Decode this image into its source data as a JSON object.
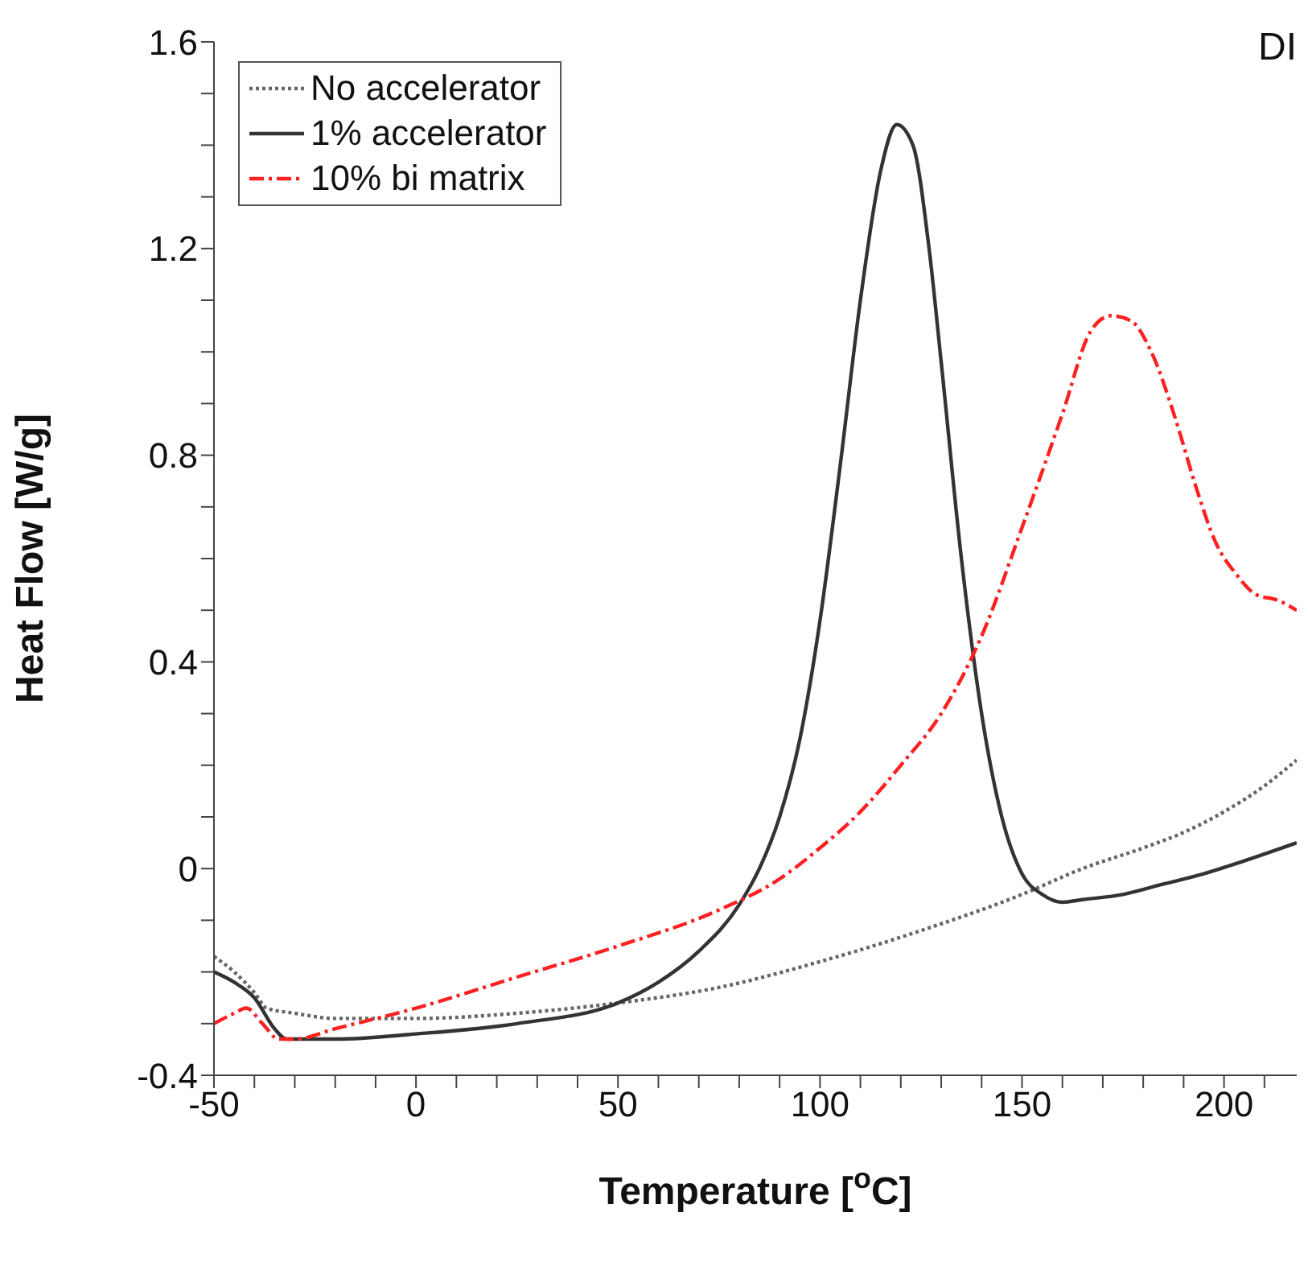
{
  "chart_data": {
    "type": "line",
    "xlabel": "Temperature [$^{o}$C]",
    "ylabel": "Heat Flow [W/g]",
    "annotations": [
      "DI"
    ],
    "xlim": [
      -50,
      218
    ],
    "xticks": [
      -50,
      {
        "value": -40,
        "label": null
      },
      {
        "value": -30,
        "label": null
      },
      {
        "value": -20,
        "label": null
      },
      {
        "value": -10,
        "label": null
      },
      0,
      {
        "value": 10,
        "label": null
      },
      {
        "value": 20,
        "label": null
      },
      {
        "value": 30,
        "label": null
      },
      {
        "value": 40,
        "label": null
      },
      50,
      {
        "value": 60,
        "label": null
      },
      {
        "value": 70,
        "label": null
      },
      {
        "value": 80,
        "label": null
      },
      {
        "value": 90,
        "label": null
      },
      100,
      {
        "value": 110,
        "label": null
      },
      {
        "value": 120,
        "label": null
      },
      {
        "value": 130,
        "label": null
      },
      {
        "value": 140,
        "label": null
      },
      150,
      {
        "value": 160,
        "label": null
      },
      {
        "value": 170,
        "label": null
      },
      {
        "value": 180,
        "label": null
      },
      {
        "value": 190,
        "label": null
      },
      200,
      {
        "value": 210,
        "label": null
      }
    ],
    "ylim": [
      -0.4,
      1.6
    ],
    "yticks": [
      -0.4,
      {
        "value": -0.3,
        "label": null
      },
      {
        "value": -0.2,
        "label": null
      },
      {
        "value": -0.1,
        "label": null
      },
      0,
      {
        "value": 0.1,
        "label": null
      },
      {
        "value": 0.2,
        "label": null
      },
      {
        "value": 0.3,
        "label": null
      },
      0.4,
      {
        "value": 0.5,
        "label": null
      },
      {
        "value": 0.6,
        "label": null
      },
      {
        "value": 0.7,
        "label": null
      },
      0.8,
      {
        "value": 0.9,
        "label": null
      },
      {
        "value": 1.0,
        "label": null
      },
      {
        "value": 1.1,
        "label": null
      },
      1.2,
      {
        "value": 1.3,
        "label": null
      },
      {
        "value": 1.4,
        "label": null
      },
      {
        "value": 1.5,
        "label": null
      },
      1.6
    ],
    "grid": false,
    "legend": "top left",
    "marker": "none",
    "series": [
      {
        "name": "No accelerator",
        "color": "#666666",
        "line_style": "dotted",
        "x": [
          -50,
          -45,
          -40,
          -37,
          -30,
          -20,
          0,
          25,
          50,
          75,
          100,
          125,
          150,
          165,
          180,
          190,
          200,
          210,
          218
        ],
        "values": [
          -0.17,
          -0.2,
          -0.24,
          -0.27,
          -0.28,
          -0.29,
          -0.29,
          -0.28,
          -0.26,
          -0.23,
          -0.18,
          -0.12,
          -0.05,
          0.0,
          0.04,
          0.07,
          0.11,
          0.16,
          0.21
        ]
      },
      {
        "name": "1% accelerator",
        "color": "#333333",
        "line_style": "solid",
        "x": [
          -50,
          -45,
          -40,
          -35,
          -32,
          -20,
          0,
          25,
          50,
          60,
          70,
          80,
          85,
          90,
          95,
          100,
          105,
          110,
          115,
          119,
          123,
          127,
          130,
          135,
          140,
          145,
          150,
          155,
          160,
          165,
          175,
          185,
          195,
          205,
          218
        ],
        "values": [
          -0.2,
          -0.22,
          -0.25,
          -0.31,
          -0.33,
          -0.33,
          -0.32,
          -0.3,
          -0.26,
          -0.22,
          -0.16,
          -0.07,
          0.0,
          0.1,
          0.25,
          0.48,
          0.78,
          1.1,
          1.35,
          1.44,
          1.4,
          1.2,
          0.98,
          0.6,
          0.3,
          0.1,
          -0.01,
          -0.05,
          -0.065,
          -0.06,
          -0.05,
          -0.03,
          -0.01,
          0.015,
          0.05
        ]
      },
      {
        "name": "10% bi matrix",
        "color": "#ff2020",
        "line_style": "dashed",
        "x": [
          -50,
          -45,
          -42,
          -38,
          -34,
          -30,
          -20,
          0,
          25,
          50,
          75,
          90,
          100,
          110,
          120,
          130,
          140,
          150,
          160,
          167,
          172,
          177,
          182,
          188,
          193,
          198,
          203,
          208,
          213,
          218
        ],
        "values": [
          -0.3,
          -0.28,
          -0.27,
          -0.3,
          -0.33,
          -0.33,
          -0.31,
          -0.27,
          -0.21,
          -0.15,
          -0.08,
          -0.02,
          0.04,
          0.11,
          0.2,
          0.3,
          0.45,
          0.66,
          0.88,
          1.04,
          1.07,
          1.06,
          1.0,
          0.87,
          0.74,
          0.63,
          0.57,
          0.53,
          0.52,
          0.5
        ]
      }
    ]
  }
}
